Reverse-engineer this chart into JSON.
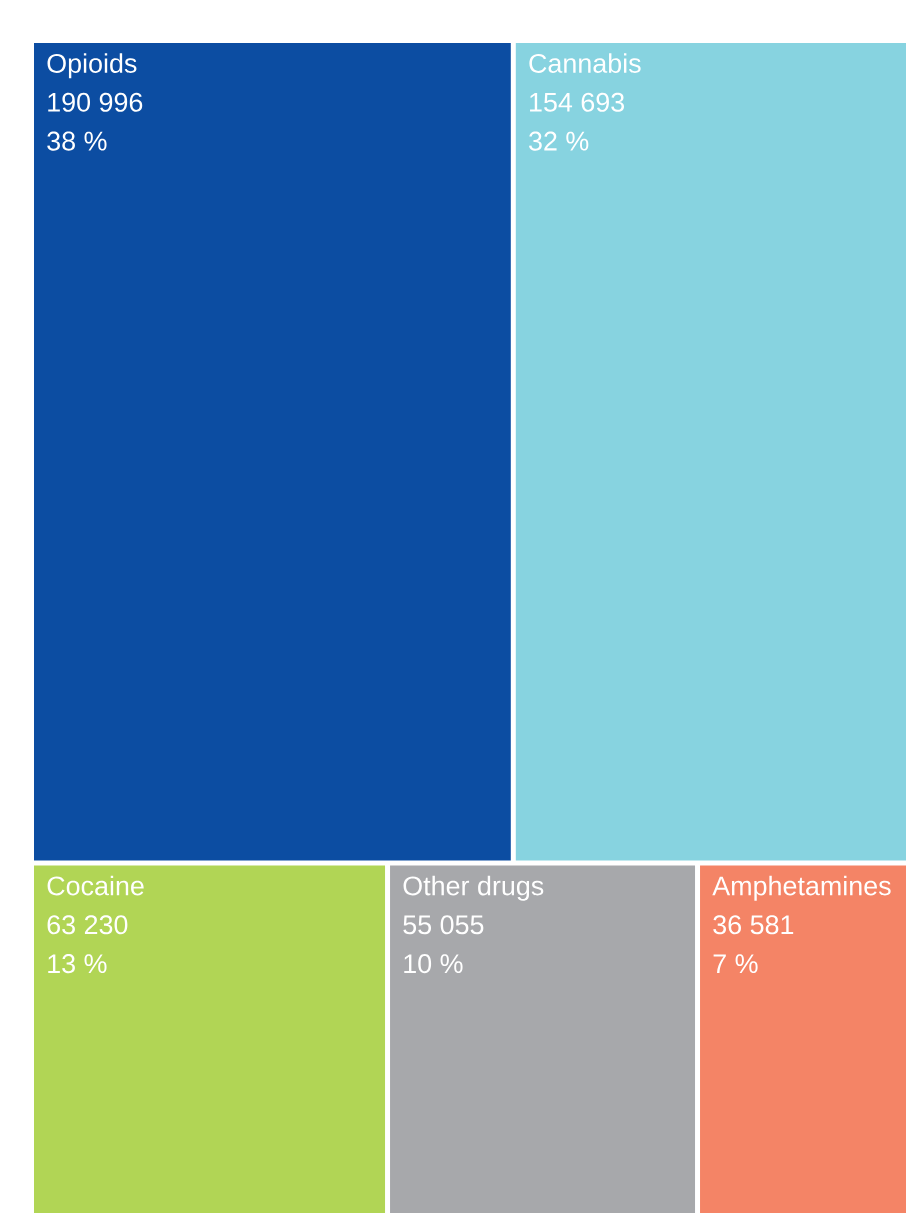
{
  "chart_data": {
    "type": "other",
    "categories": [
      "Opioids",
      "Cannabis",
      "Cocaine",
      "Other drugs",
      "Amphetamines"
    ],
    "series": [
      {
        "colors": [
          "#0c4da2",
          "#87d3e0",
          "#b1d555",
          "#a7a8ab",
          "#f48466"
        ],
        "values": [
          190996,
          154693,
          63230,
          55055,
          36581
        ],
        "value_labels": [
          "190 996",
          "154 693",
          "63 230",
          "55 055",
          "36 581"
        ]
      },
      {
        "values": [
          38,
          32,
          13,
          10,
          7
        ],
        "value_labels": [
          "38 %",
          "32 %",
          "13 %",
          "10 %",
          "7 %"
        ]
      }
    ]
  }
}
